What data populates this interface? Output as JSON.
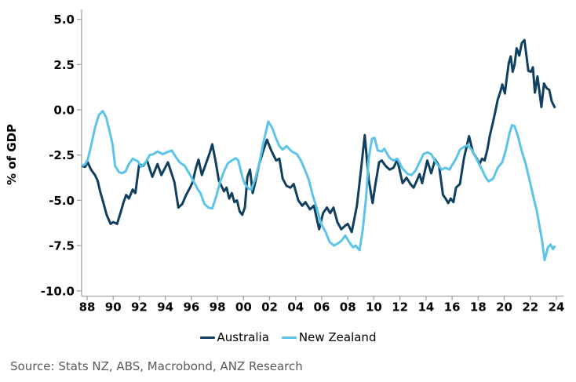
{
  "chart": {
    "y_axis_label": "% of GDP",
    "colors": {
      "australia_line": "#10405f",
      "new_zealand_line": "#5bc4e7",
      "axis": "#a3a3a3",
      "tick_label": "#000000",
      "source_text": "#595959"
    }
  },
  "footer": {
    "source": "Source: Stats NZ, ABS, Macrobond, ANZ Research"
  },
  "chart_data": {
    "type": "line",
    "title": "",
    "xlabel": "",
    "ylabel": "% of GDP",
    "ylim": [
      -10.0,
      5.0
    ],
    "ytick_step": 2.5,
    "grid": false,
    "legend_position": "bottom",
    "x_units": "year (quarterly observations)",
    "xticks": [
      1988,
      1990,
      1992,
      1994,
      1996,
      1998,
      2000,
      2002,
      2004,
      2006,
      2008,
      2010,
      2012,
      2014,
      2016,
      2018,
      2020,
      2022,
      2024
    ],
    "xtick_labels": [
      "88",
      "90",
      "92",
      "94",
      "96",
      "98",
      "00",
      "02",
      "04",
      "06",
      "08",
      "10",
      "12",
      "14",
      "16",
      "18",
      "20",
      "22",
      "24"
    ],
    "series": [
      {
        "name": "Australia",
        "color": "#10405f",
        "points": [
          [
            1987.6,
            -3.1
          ],
          [
            1987.85,
            -3.15
          ],
          [
            1988.05,
            -2.9
          ],
          [
            1988.3,
            -3.3
          ],
          [
            1988.6,
            -3.6
          ],
          [
            1988.8,
            -3.9
          ],
          [
            1989.0,
            -4.5
          ],
          [
            1989.2,
            -5.0
          ],
          [
            1989.5,
            -5.8
          ],
          [
            1989.8,
            -6.3
          ],
          [
            1990.0,
            -6.2
          ],
          [
            1990.3,
            -6.3
          ],
          [
            1990.6,
            -5.6
          ],
          [
            1990.8,
            -5.1
          ],
          [
            1991.0,
            -4.7
          ],
          [
            1991.2,
            -4.9
          ],
          [
            1991.5,
            -4.4
          ],
          [
            1991.7,
            -4.6
          ],
          [
            1992.0,
            -3.0
          ],
          [
            1992.3,
            -3.1
          ],
          [
            1992.6,
            -2.8
          ],
          [
            1993.0,
            -3.7
          ],
          [
            1993.4,
            -3.0
          ],
          [
            1993.7,
            -3.6
          ],
          [
            1994.2,
            -2.9
          ],
          [
            1994.7,
            -4.0
          ],
          [
            1995.0,
            -5.4
          ],
          [
            1995.3,
            -5.2
          ],
          [
            1995.6,
            -4.7
          ],
          [
            1995.9,
            -4.3
          ],
          [
            1996.1,
            -4.0
          ],
          [
            1996.35,
            -3.2
          ],
          [
            1996.55,
            -2.75
          ],
          [
            1996.8,
            -3.6
          ],
          [
            1997.1,
            -3.0
          ],
          [
            1997.4,
            -2.4
          ],
          [
            1997.6,
            -1.9
          ],
          [
            1997.9,
            -3.0
          ],
          [
            1998.1,
            -3.9
          ],
          [
            1998.3,
            -4.2
          ],
          [
            1998.5,
            -4.5
          ],
          [
            1998.7,
            -4.3
          ],
          [
            1998.9,
            -4.9
          ],
          [
            1999.1,
            -4.6
          ],
          [
            1999.3,
            -5.1
          ],
          [
            1999.5,
            -5.0
          ],
          [
            1999.7,
            -5.6
          ],
          [
            1999.9,
            -5.8
          ],
          [
            2000.1,
            -5.4
          ],
          [
            2000.3,
            -3.7
          ],
          [
            2000.5,
            -3.3
          ],
          [
            2000.7,
            -4.6
          ],
          [
            2000.9,
            -4.0
          ],
          [
            2001.2,
            -3.0
          ],
          [
            2001.5,
            -2.3
          ],
          [
            2001.8,
            -1.65
          ],
          [
            2002.1,
            -2.2
          ],
          [
            2002.3,
            -2.5
          ],
          [
            2002.5,
            -2.8
          ],
          [
            2002.75,
            -2.7
          ],
          [
            2003.0,
            -3.8
          ],
          [
            2003.3,
            -4.2
          ],
          [
            2003.6,
            -4.3
          ],
          [
            2003.85,
            -4.1
          ],
          [
            2004.2,
            -5.0
          ],
          [
            2004.5,
            -5.3
          ],
          [
            2004.75,
            -5.1
          ],
          [
            2005.1,
            -5.5
          ],
          [
            2005.4,
            -5.3
          ],
          [
            2005.8,
            -6.6
          ],
          [
            2006.1,
            -5.7
          ],
          [
            2006.4,
            -5.4
          ],
          [
            2006.65,
            -5.7
          ],
          [
            2006.9,
            -5.4
          ],
          [
            2007.2,
            -6.2
          ],
          [
            2007.5,
            -6.6
          ],
          [
            2007.8,
            -6.4
          ],
          [
            2008.0,
            -6.3
          ],
          [
            2008.3,
            -6.75
          ],
          [
            2008.7,
            -5.3
          ],
          [
            2009.0,
            -3.4
          ],
          [
            2009.3,
            -1.4
          ],
          [
            2009.6,
            -3.85
          ],
          [
            2009.9,
            -5.15
          ],
          [
            2010.1,
            -4.2
          ],
          [
            2010.4,
            -2.9
          ],
          [
            2010.6,
            -2.8
          ],
          [
            2010.9,
            -3.1
          ],
          [
            2011.2,
            -3.3
          ],
          [
            2011.5,
            -3.2
          ],
          [
            2011.8,
            -2.75
          ],
          [
            2012.2,
            -4.05
          ],
          [
            2012.5,
            -3.75
          ],
          [
            2012.8,
            -4.1
          ],
          [
            2013.05,
            -4.3
          ],
          [
            2013.3,
            -3.9
          ],
          [
            2013.5,
            -3.55
          ],
          [
            2013.7,
            -4.05
          ],
          [
            2014.1,
            -2.8
          ],
          [
            2014.4,
            -3.5
          ],
          [
            2014.7,
            -2.75
          ],
          [
            2015.0,
            -3.1
          ],
          [
            2015.3,
            -4.7
          ],
          [
            2015.5,
            -4.9
          ],
          [
            2015.7,
            -5.15
          ],
          [
            2015.9,
            -4.9
          ],
          [
            2016.1,
            -5.1
          ],
          [
            2016.3,
            -4.3
          ],
          [
            2016.6,
            -4.1
          ],
          [
            2016.9,
            -2.7
          ],
          [
            2017.3,
            -1.45
          ],
          [
            2017.6,
            -2.35
          ],
          [
            2017.9,
            -2.7
          ],
          [
            2018.1,
            -3.0
          ],
          [
            2018.3,
            -2.7
          ],
          [
            2018.5,
            -2.8
          ],
          [
            2018.7,
            -2.2
          ],
          [
            2018.9,
            -1.4
          ],
          [
            2019.1,
            -0.8
          ],
          [
            2019.3,
            -0.15
          ],
          [
            2019.5,
            0.55
          ],
          [
            2019.7,
            1.0
          ],
          [
            2019.85,
            1.4
          ],
          [
            2020.05,
            0.9
          ],
          [
            2020.2,
            1.8
          ],
          [
            2020.35,
            2.6
          ],
          [
            2020.5,
            2.95
          ],
          [
            2020.65,
            2.1
          ],
          [
            2020.8,
            2.5
          ],
          [
            2020.95,
            3.4
          ],
          [
            2021.15,
            3.0
          ],
          [
            2021.35,
            3.7
          ],
          [
            2021.55,
            3.85
          ],
          [
            2021.85,
            2.15
          ],
          [
            2022.05,
            2.1
          ],
          [
            2022.2,
            2.35
          ],
          [
            2022.35,
            0.95
          ],
          [
            2022.55,
            1.85
          ],
          [
            2022.85,
            0.15
          ],
          [
            2023.05,
            1.45
          ],
          [
            2023.25,
            1.2
          ],
          [
            2023.45,
            1.1
          ],
          [
            2023.65,
            0.45
          ],
          [
            2023.9,
            0.1
          ]
        ]
      },
      {
        "name": "New Zealand",
        "color": "#5bc4e7",
        "points": [
          [
            1987.6,
            -3.1
          ],
          [
            1987.85,
            -3.0
          ],
          [
            1988.05,
            -2.75
          ],
          [
            1988.3,
            -2.0
          ],
          [
            1988.6,
            -1.0
          ],
          [
            1988.9,
            -0.3
          ],
          [
            1989.2,
            -0.07
          ],
          [
            1989.45,
            -0.4
          ],
          [
            1989.7,
            -1.1
          ],
          [
            1989.95,
            -1.9
          ],
          [
            1990.15,
            -3.1
          ],
          [
            1990.45,
            -3.45
          ],
          [
            1990.7,
            -3.5
          ],
          [
            1990.95,
            -3.4
          ],
          [
            1991.2,
            -3.0
          ],
          [
            1991.5,
            -2.7
          ],
          [
            1991.9,
            -2.85
          ],
          [
            1992.15,
            -3.15
          ],
          [
            1992.5,
            -2.9
          ],
          [
            1992.8,
            -2.5
          ],
          [
            1993.1,
            -2.45
          ],
          [
            1993.4,
            -2.3
          ],
          [
            1993.8,
            -2.45
          ],
          [
            1994.1,
            -2.35
          ],
          [
            1994.5,
            -2.25
          ],
          [
            1994.8,
            -2.6
          ],
          [
            1995.1,
            -2.9
          ],
          [
            1995.5,
            -3.1
          ],
          [
            1995.9,
            -3.6
          ],
          [
            1996.1,
            -3.85
          ],
          [
            1996.5,
            -4.4
          ],
          [
            1996.7,
            -4.6
          ],
          [
            1997.0,
            -5.2
          ],
          [
            1997.3,
            -5.4
          ],
          [
            1997.6,
            -5.45
          ],
          [
            1997.9,
            -4.8
          ],
          [
            1998.2,
            -4.0
          ],
          [
            1998.5,
            -3.4
          ],
          [
            1998.8,
            -2.95
          ],
          [
            1999.1,
            -2.8
          ],
          [
            1999.4,
            -2.67
          ],
          [
            1999.6,
            -2.8
          ],
          [
            1999.9,
            -3.7
          ],
          [
            2000.1,
            -4.1
          ],
          [
            2000.4,
            -4.35
          ],
          [
            2000.6,
            -4.4
          ],
          [
            2000.9,
            -3.8
          ],
          [
            2001.2,
            -3.0
          ],
          [
            2001.5,
            -1.9
          ],
          [
            2001.9,
            -0.65
          ],
          [
            2002.2,
            -1.0
          ],
          [
            2002.5,
            -1.6
          ],
          [
            2002.75,
            -2.0
          ],
          [
            2003.0,
            -2.2
          ],
          [
            2003.3,
            -2.0
          ],
          [
            2003.7,
            -2.3
          ],
          [
            2004.1,
            -2.45
          ],
          [
            2004.4,
            -2.8
          ],
          [
            2004.7,
            -3.3
          ],
          [
            2005.0,
            -3.85
          ],
          [
            2005.3,
            -4.7
          ],
          [
            2005.6,
            -5.4
          ],
          [
            2005.95,
            -6.3
          ],
          [
            2006.3,
            -6.75
          ],
          [
            2006.6,
            -7.3
          ],
          [
            2006.95,
            -7.5
          ],
          [
            2007.3,
            -7.35
          ],
          [
            2007.55,
            -7.2
          ],
          [
            2007.8,
            -6.95
          ],
          [
            2008.1,
            -7.3
          ],
          [
            2008.4,
            -7.6
          ],
          [
            2008.6,
            -7.5
          ],
          [
            2008.9,
            -7.75
          ],
          [
            2009.15,
            -6.6
          ],
          [
            2009.4,
            -4.85
          ],
          [
            2009.6,
            -2.7
          ],
          [
            2009.85,
            -1.6
          ],
          [
            2010.05,
            -1.55
          ],
          [
            2010.3,
            -2.25
          ],
          [
            2010.6,
            -2.3
          ],
          [
            2010.8,
            -2.15
          ],
          [
            2011.2,
            -2.65
          ],
          [
            2011.5,
            -2.8
          ],
          [
            2011.8,
            -2.7
          ],
          [
            2012.2,
            -3.25
          ],
          [
            2012.6,
            -3.55
          ],
          [
            2012.9,
            -3.6
          ],
          [
            2013.2,
            -3.35
          ],
          [
            2013.5,
            -2.9
          ],
          [
            2013.8,
            -2.45
          ],
          [
            2014.1,
            -2.35
          ],
          [
            2014.4,
            -2.45
          ],
          [
            2014.8,
            -2.95
          ],
          [
            2015.2,
            -3.3
          ],
          [
            2015.5,
            -3.2
          ],
          [
            2015.8,
            -3.3
          ],
          [
            2016.3,
            -2.7
          ],
          [
            2016.6,
            -2.2
          ],
          [
            2016.9,
            -2.05
          ],
          [
            2017.2,
            -1.95
          ],
          [
            2017.5,
            -2.2
          ],
          [
            2017.7,
            -2.45
          ],
          [
            2018.0,
            -2.9
          ],
          [
            2018.3,
            -3.3
          ],
          [
            2018.55,
            -3.7
          ],
          [
            2018.8,
            -3.95
          ],
          [
            2019.15,
            -3.8
          ],
          [
            2019.5,
            -3.2
          ],
          [
            2019.85,
            -2.9
          ],
          [
            2020.15,
            -2.15
          ],
          [
            2020.4,
            -1.3
          ],
          [
            2020.6,
            -0.85
          ],
          [
            2020.8,
            -0.9
          ],
          [
            2021.05,
            -1.45
          ],
          [
            2021.35,
            -2.3
          ],
          [
            2021.65,
            -3.0
          ],
          [
            2021.95,
            -3.9
          ],
          [
            2022.2,
            -4.7
          ],
          [
            2022.5,
            -5.6
          ],
          [
            2022.7,
            -6.4
          ],
          [
            2022.9,
            -7.2
          ],
          [
            2023.1,
            -8.3
          ],
          [
            2023.35,
            -7.6
          ],
          [
            2023.55,
            -7.45
          ],
          [
            2023.75,
            -7.7
          ],
          [
            2023.9,
            -7.5
          ]
        ]
      }
    ]
  }
}
